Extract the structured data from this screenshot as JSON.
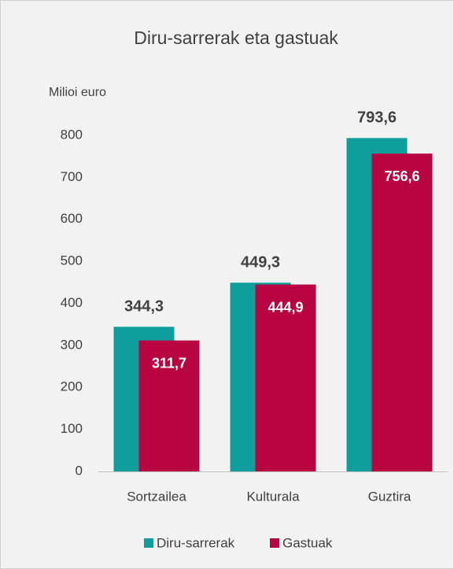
{
  "chart_data": {
    "type": "bar",
    "title": "Diru-sarrerak eta gastuak",
    "y_label": "Milioi euro",
    "categories": [
      "Sortzailea",
      "Kulturala",
      "Guztira"
    ],
    "series": [
      {
        "name": "Diru-sarrerak",
        "color": "#0f9e9c",
        "values": [
          344.3,
          449.3,
          793.6
        ],
        "value_labels": [
          "344,3",
          "449,3",
          "793,6"
        ]
      },
      {
        "name": "Gastuak",
        "color": "#b80541",
        "values": [
          311.7,
          444.9,
          756.6
        ],
        "value_labels": [
          "311,7",
          "444,9",
          "756,6"
        ]
      }
    ],
    "ylim": [
      0,
      800
    ],
    "yticks": [
      0,
      100,
      200,
      300,
      400,
      500,
      600,
      700,
      800
    ],
    "grid": false,
    "legend": "bottom"
  }
}
